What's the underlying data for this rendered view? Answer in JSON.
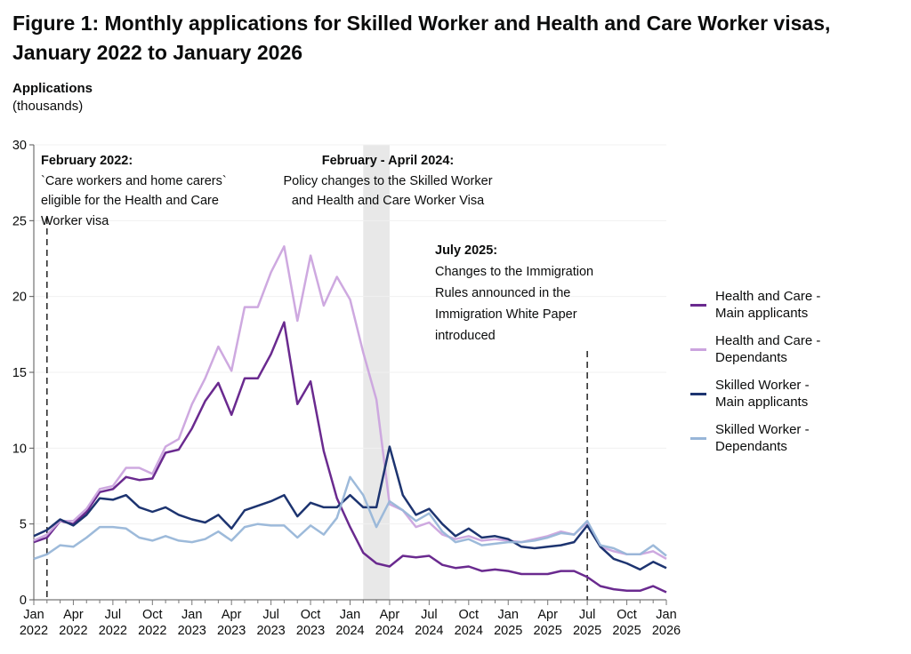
{
  "chart_data": {
    "type": "line",
    "title": "Figure 1: Monthly applications for Skilled Worker and Health and Care Worker visas, January 2022 to January 2026",
    "ylabel": "Applications",
    "ylabel_unit": "(thousands)",
    "xlabel": "",
    "ylim": [
      0,
      30
    ],
    "yticks": [
      "0",
      "5",
      "10",
      "15",
      "20",
      "25",
      "30"
    ],
    "x_start": "2022-01",
    "x_end": "2026-01",
    "xticks": [
      {
        "m": "Jan",
        "y": "2022"
      },
      {
        "m": "Apr",
        "y": "2022"
      },
      {
        "m": "Jul",
        "y": "2022"
      },
      {
        "m": "Oct",
        "y": "2022"
      },
      {
        "m": "Jan",
        "y": "2023"
      },
      {
        "m": "Apr",
        "y": "2023"
      },
      {
        "m": "Jul",
        "y": "2023"
      },
      {
        "m": "Oct",
        "y": "2023"
      },
      {
        "m": "Jan",
        "y": "2024"
      },
      {
        "m": "Apr",
        "y": "2024"
      },
      {
        "m": "Jul",
        "y": "2024"
      },
      {
        "m": "Oct",
        "y": "2024"
      },
      {
        "m": "Jan",
        "y": "2025"
      },
      {
        "m": "Apr",
        "y": "2025"
      },
      {
        "m": "Jul",
        "y": "2025"
      },
      {
        "m": "Oct",
        "y": "2025"
      },
      {
        "m": "Jan",
        "y": "2026"
      }
    ],
    "grid": "horizontal",
    "legend_position": "right",
    "series": [
      {
        "name_line1": "Health and Care -",
        "name_line2": "Main applicants",
        "color": "#6a2a8f",
        "values": [
          3.8,
          4.1,
          5.2,
          5.0,
          5.8,
          7.1,
          7.3,
          8.1,
          7.9,
          8.0,
          9.7,
          9.9,
          11.3,
          13.1,
          14.3,
          12.2,
          14.6,
          14.6,
          16.2,
          18.3,
          12.9,
          14.4,
          9.8,
          6.7,
          4.8,
          3.1,
          2.4,
          2.2,
          2.9,
          2.8,
          2.9,
          2.3,
          2.1,
          2.2,
          1.9,
          2.0,
          1.9,
          1.7,
          1.7,
          1.7,
          1.9,
          1.9,
          1.5,
          0.9,
          0.7,
          0.6,
          0.6,
          0.9,
          0.5
        ]
      },
      {
        "name_line1": "Health and Care -",
        "name_line2": "Dependants",
        "color": "#cba4de",
        "values": [
          3.9,
          4.3,
          5.2,
          5.2,
          6.0,
          7.3,
          7.5,
          8.7,
          8.7,
          8.3,
          10.1,
          10.6,
          12.9,
          14.6,
          16.7,
          15.1,
          19.3,
          19.3,
          21.6,
          23.3,
          18.4,
          22.7,
          19.4,
          21.3,
          19.8,
          16.3,
          13.2,
          6.3,
          5.9,
          4.8,
          5.1,
          4.3,
          4.0,
          4.2,
          3.9,
          4.0,
          3.9,
          3.8,
          4.0,
          4.2,
          4.5,
          4.3,
          5.1,
          3.5,
          3.2,
          3.0,
          3.0,
          3.2,
          2.7
        ]
      },
      {
        "name_line1": "Skilled Worker -",
        "name_line2": "Main applicants",
        "color": "#1d3470",
        "values": [
          4.2,
          4.6,
          5.3,
          4.9,
          5.6,
          6.7,
          6.6,
          6.9,
          6.1,
          5.8,
          6.1,
          5.6,
          5.3,
          5.1,
          5.6,
          4.7,
          5.9,
          6.2,
          6.5,
          6.9,
          5.5,
          6.4,
          6.1,
          6.1,
          6.9,
          6.1,
          6.1,
          10.1,
          6.9,
          5.6,
          6.0,
          5.0,
          4.2,
          4.7,
          4.1,
          4.2,
          4.0,
          3.5,
          3.4,
          3.5,
          3.6,
          3.8,
          4.9,
          3.5,
          2.7,
          2.4,
          2.0,
          2.5,
          2.1
        ]
      },
      {
        "name_line1": "Skilled Worker -",
        "name_line2": "Dependants",
        "color": "#98b6d8",
        "values": [
          2.7,
          3.0,
          3.6,
          3.5,
          4.1,
          4.8,
          4.8,
          4.7,
          4.1,
          3.9,
          4.2,
          3.9,
          3.8,
          4.0,
          4.5,
          3.9,
          4.8,
          5.0,
          4.9,
          4.9,
          4.1,
          4.9,
          4.3,
          5.4,
          8.1,
          6.9,
          4.8,
          6.5,
          5.9,
          5.2,
          5.7,
          4.5,
          3.8,
          4.0,
          3.6,
          3.7,
          3.8,
          3.8,
          3.9,
          4.1,
          4.4,
          4.3,
          5.2,
          3.6,
          3.4,
          3.0,
          3.0,
          3.6,
          2.9
        ]
      }
    ],
    "shaded_period": {
      "from": "2024-02",
      "to": "2024-04",
      "color": "#e8e8e8"
    },
    "annotations": [
      {
        "date": "2022-02",
        "heading": "February 2022:",
        "lines": [
          "`Care workers and home carers`",
          "eligible for the Health and Care",
          "Worker visa"
        ]
      },
      {
        "date": "2024-02",
        "heading": "February - April 2024:",
        "lines": [
          "Policy changes to the Skilled Worker",
          "and Health and Care Worker Visa"
        ]
      },
      {
        "date": "2025-07",
        "heading": "July 2025:",
        "lines": [
          "Changes to the Immigration",
          "Rules announced in the",
          "Immigration White Paper",
          "introduced"
        ]
      }
    ]
  }
}
